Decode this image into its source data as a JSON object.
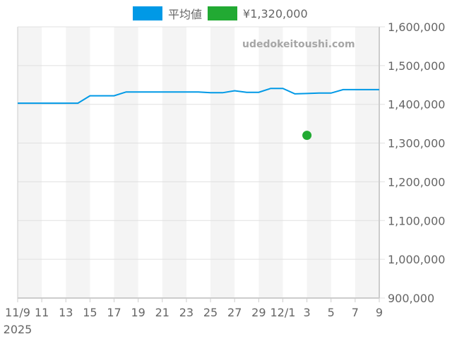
{
  "legend": {
    "average_label": "平均値",
    "average_color": "#0099e6",
    "price_label": "¥1,320,000",
    "price_color": "#22aa33"
  },
  "watermark": "udedokeitoushi.com",
  "chart_data": {
    "type": "line",
    "title": "",
    "xlabel": "",
    "ylabel": "",
    "ylim": [
      900000,
      1600000
    ],
    "y_ticks": [
      "1,600,000",
      "1,500,000",
      "1,400,000",
      "1,300,000",
      "1,200,000",
      "1,100,000",
      "1,000,000",
      "900,000"
    ],
    "y_tick_values": [
      1600000,
      1500000,
      1400000,
      1300000,
      1200000,
      1100000,
      1000000,
      900000
    ],
    "x_ticks": [
      "11/9",
      "11",
      "13",
      "15",
      "17",
      "19",
      "21",
      "23",
      "25",
      "27",
      "29",
      "12/1",
      "3",
      "5",
      "7",
      "9"
    ],
    "x_year_label": "2025",
    "x": [
      "11/9",
      "11/10",
      "11/11",
      "11/12",
      "11/13",
      "11/14",
      "11/15",
      "11/16",
      "11/17",
      "11/18",
      "11/19",
      "11/20",
      "11/21",
      "11/22",
      "11/23",
      "11/24",
      "11/25",
      "11/26",
      "11/27",
      "11/28",
      "11/29",
      "11/30",
      "12/1",
      "12/2",
      "12/3",
      "12/4",
      "12/5",
      "12/6",
      "12/7",
      "12/8",
      "12/9"
    ],
    "series": [
      {
        "name": "平均値",
        "color": "#0099e6",
        "values": [
          1403000,
          1403000,
          1403000,
          1403000,
          1403000,
          1403000,
          1422000,
          1422000,
          1422000,
          1432000,
          1432000,
          1432000,
          1432000,
          1432000,
          1432000,
          1432000,
          1430000,
          1430000,
          1435000,
          1431000,
          1431000,
          1441000,
          1441000,
          1427000,
          1428000,
          1429000,
          1429000,
          1438000,
          1438000,
          1438000,
          1438000
        ]
      },
      {
        "name": "¥1,320,000",
        "color": "#22aa33",
        "type": "scatter",
        "points": [
          {
            "x": "12/3",
            "y": 1320000
          }
        ]
      }
    ],
    "grid": true,
    "legend_position": "top"
  }
}
